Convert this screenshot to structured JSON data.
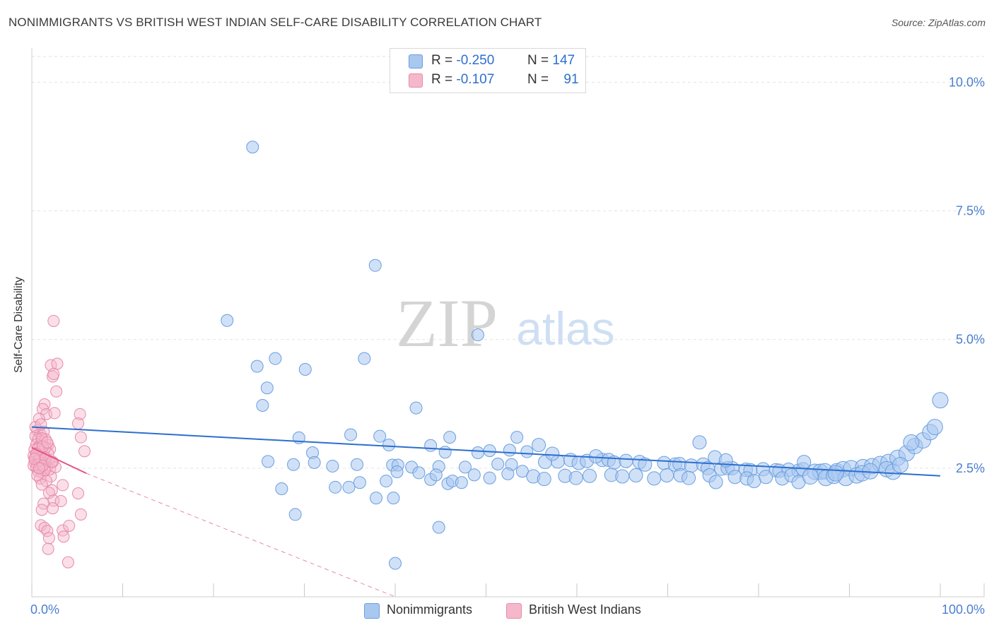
{
  "title": "NONIMMIGRANTS VS BRITISH WEST INDIAN SELF-CARE DISABILITY CORRELATION CHART",
  "source": "Source: ZipAtlas.com",
  "watermark": {
    "zip": "ZIP",
    "atlas": "atlas"
  },
  "legend_top": {
    "rows": [
      {
        "r_label": "R =",
        "r_value": "-0.250",
        "n_label": "N =",
        "n_value": "147"
      },
      {
        "r_label": "R =",
        "r_value": "-0.107",
        "n_label": "N =",
        "n_value": "91"
      }
    ]
  },
  "legend_bottom": {
    "items": [
      "Nonimmigrants",
      "British West Indians"
    ]
  },
  "colors": {
    "blue_fill": "#a9c8f0",
    "blue_stroke": "#6a9ee0",
    "blue_line": "#2d6fcf",
    "pink_fill": "#f5b8cb",
    "pink_stroke": "#e889a8",
    "pink_line": "#e25586",
    "tick_label": "#4a7fcf",
    "grid": "#e2e2e2"
  },
  "chart_data": {
    "type": "scatter",
    "title": "NONIMMIGRANTS VS BRITISH WEST INDIAN SELF-CARE DISABILITY CORRELATION CHART",
    "xlabel": "",
    "ylabel": "Self-Care Disability",
    "xlim": [
      0,
      100
    ],
    "ylim": [
      0,
      10.5
    ],
    "x_tick_labels": [
      "0.0%",
      "100.0%"
    ],
    "y_ticks": [
      2.5,
      5.0,
      7.5,
      10.0
    ],
    "y_tick_labels": [
      "2.5%",
      "5.0%",
      "7.5%",
      "10.0%"
    ],
    "grid": "horizontal dashed",
    "legend_placement": "top-center and bottom-center",
    "series": [
      {
        "name": "Nonimmigrants",
        "color": "#a9c8f0",
        "r": -0.25,
        "n": 147,
        "trend": {
          "x": [
            0,
            100
          ],
          "y": [
            3.3,
            2.35
          ]
        },
        "points": [
          [
            24.3,
            8.74
          ],
          [
            37.8,
            6.44
          ],
          [
            21.5,
            5.37
          ],
          [
            49.1,
            5.09
          ],
          [
            26.8,
            4.63
          ],
          [
            36.6,
            4.63
          ],
          [
            24.8,
            4.48
          ],
          [
            30.1,
            4.42
          ],
          [
            25.9,
            4.06
          ],
          [
            25.4,
            3.72
          ],
          [
            42.3,
            3.67
          ],
          [
            38.3,
            3.12
          ],
          [
            35.1,
            3.15
          ],
          [
            46.0,
            3.1
          ],
          [
            29.4,
            3.09
          ],
          [
            53.4,
            3.1
          ],
          [
            39.3,
            2.95
          ],
          [
            43.9,
            2.94
          ],
          [
            30.9,
            2.8
          ],
          [
            31.1,
            2.61
          ],
          [
            45.5,
            2.81
          ],
          [
            49.1,
            2.8
          ],
          [
            50.4,
            2.84
          ],
          [
            52.6,
            2.85
          ],
          [
            54.5,
            2.82
          ],
          [
            55.8,
            2.95
          ],
          [
            26.0,
            2.63
          ],
          [
            28.8,
            2.57
          ],
          [
            33.1,
            2.54
          ],
          [
            35.8,
            2.57
          ],
          [
            39.7,
            2.56
          ],
          [
            40.3,
            2.56
          ],
          [
            41.8,
            2.52
          ],
          [
            44.8,
            2.53
          ],
          [
            47.7,
            2.52
          ],
          [
            51.3,
            2.58
          ],
          [
            52.8,
            2.57
          ],
          [
            56.5,
            2.62
          ],
          [
            57.9,
            2.63
          ],
          [
            59.3,
            2.66
          ],
          [
            60.2,
            2.6
          ],
          [
            61.1,
            2.64
          ],
          [
            62.8,
            2.66
          ],
          [
            63.5,
            2.66
          ],
          [
            64.1,
            2.61
          ],
          [
            65.4,
            2.64
          ],
          [
            66.9,
            2.62
          ],
          [
            67.5,
            2.57
          ],
          [
            69.6,
            2.6
          ],
          [
            70.8,
            2.57
          ],
          [
            71.3,
            2.58
          ],
          [
            72.6,
            2.55
          ],
          [
            73.9,
            2.57
          ],
          [
            74.4,
            2.5
          ],
          [
            75.9,
            2.49
          ],
          [
            76.6,
            2.5
          ],
          [
            77.1,
            2.5
          ],
          [
            78.6,
            2.47
          ],
          [
            79.1,
            2.46
          ],
          [
            80.5,
            2.48
          ],
          [
            81.9,
            2.46
          ],
          [
            82.3,
            2.45
          ],
          [
            83.3,
            2.47
          ],
          [
            84.4,
            2.45
          ],
          [
            84.9,
            2.48
          ],
          [
            86.2,
            2.43
          ],
          [
            86.8,
            2.43
          ],
          [
            87.3,
            2.44
          ],
          [
            88.6,
            2.44
          ],
          [
            89.3,
            2.48
          ],
          [
            90.2,
            2.5
          ],
          [
            91.5,
            2.52
          ],
          [
            92.5,
            2.54
          ],
          [
            93.4,
            2.58
          ],
          [
            94.3,
            2.62
          ],
          [
            95.3,
            2.7
          ],
          [
            96.3,
            2.79
          ],
          [
            97.2,
            2.93
          ],
          [
            98.1,
            3.04
          ],
          [
            98.9,
            3.2
          ],
          [
            99.4,
            3.3
          ],
          [
            100.0,
            3.82
          ],
          [
            73.5,
            3.0
          ],
          [
            96.8,
            3.0
          ],
          [
            57.3,
            2.78
          ],
          [
            62.1,
            2.73
          ],
          [
            75.2,
            2.71
          ],
          [
            85.0,
            2.62
          ],
          [
            76.4,
            2.65
          ],
          [
            27.5,
            2.1
          ],
          [
            33.4,
            2.13
          ],
          [
            34.9,
            2.13
          ],
          [
            36.1,
            2.22
          ],
          [
            39.0,
            2.25
          ],
          [
            40.2,
            2.43
          ],
          [
            42.6,
            2.41
          ],
          [
            43.9,
            2.28
          ],
          [
            44.5,
            2.37
          ],
          [
            45.8,
            2.2
          ],
          [
            46.3,
            2.25
          ],
          [
            47.3,
            2.22
          ],
          [
            48.7,
            2.37
          ],
          [
            50.4,
            2.31
          ],
          [
            52.4,
            2.39
          ],
          [
            54.0,
            2.44
          ],
          [
            55.2,
            2.34
          ],
          [
            56.4,
            2.29
          ],
          [
            58.7,
            2.35
          ],
          [
            59.9,
            2.31
          ],
          [
            61.4,
            2.35
          ],
          [
            63.8,
            2.37
          ],
          [
            65.0,
            2.34
          ],
          [
            66.5,
            2.36
          ],
          [
            68.5,
            2.3
          ],
          [
            69.9,
            2.36
          ],
          [
            71.4,
            2.36
          ],
          [
            72.3,
            2.31
          ],
          [
            74.6,
            2.36
          ],
          [
            75.3,
            2.23
          ],
          [
            77.4,
            2.33
          ],
          [
            78.7,
            2.3
          ],
          [
            79.5,
            2.25
          ],
          [
            80.8,
            2.33
          ],
          [
            82.6,
            2.3
          ],
          [
            83.6,
            2.36
          ],
          [
            84.4,
            2.23
          ],
          [
            85.7,
            2.34
          ],
          [
            87.4,
            2.31
          ],
          [
            88.3,
            2.35
          ],
          [
            89.6,
            2.31
          ],
          [
            90.8,
            2.36
          ],
          [
            91.4,
            2.4
          ],
          [
            92.3,
            2.44
          ],
          [
            94.1,
            2.48
          ],
          [
            94.8,
            2.43
          ],
          [
            29.0,
            1.6
          ],
          [
            37.9,
            1.92
          ],
          [
            39.8,
            1.92
          ],
          [
            44.8,
            1.35
          ],
          [
            40.0,
            0.65
          ],
          [
            95.6,
            2.56
          ],
          [
            88.5,
            2.4
          ]
        ]
      },
      {
        "name": "British West Indians",
        "color": "#f5b8cb",
        "r": -0.107,
        "n": 91,
        "trend_solid": {
          "x": [
            0,
            6
          ],
          "y": [
            2.9,
            2.4
          ]
        },
        "trend_dashed": {
          "x": [
            6,
            40
          ],
          "y": [
            2.4,
            0.0
          ]
        },
        "points": [
          [
            2.4,
            5.36
          ],
          [
            2.1,
            4.5
          ],
          [
            2.8,
            4.53
          ],
          [
            2.3,
            4.28
          ],
          [
            2.4,
            4.33
          ],
          [
            2.7,
            3.99
          ],
          [
            1.4,
            3.74
          ],
          [
            1.2,
            3.65
          ],
          [
            1.6,
            3.55
          ],
          [
            2.5,
            3.57
          ],
          [
            0.8,
            3.46
          ],
          [
            5.3,
            3.55
          ],
          [
            5.1,
            3.37
          ],
          [
            0.6,
            3.23
          ],
          [
            0.9,
            3.17
          ],
          [
            1.3,
            3.21
          ],
          [
            5.4,
            3.1
          ],
          [
            0.4,
            3.12
          ],
          [
            0.7,
            3.06
          ],
          [
            1.1,
            3.02
          ],
          [
            1.5,
            3.06
          ],
          [
            0.5,
            2.96
          ],
          [
            0.9,
            2.93
          ],
          [
            1.8,
            2.95
          ],
          [
            5.8,
            2.83
          ],
          [
            0.3,
            2.86
          ],
          [
            0.6,
            2.8
          ],
          [
            1.0,
            2.83
          ],
          [
            1.3,
            2.77
          ],
          [
            2.0,
            2.87
          ],
          [
            0.2,
            2.74
          ],
          [
            0.4,
            2.71
          ],
          [
            0.8,
            2.68
          ],
          [
            1.2,
            2.72
          ],
          [
            1.6,
            2.68
          ],
          [
            0.3,
            2.62
          ],
          [
            0.6,
            2.59
          ],
          [
            0.9,
            2.63
          ],
          [
            1.4,
            2.6
          ],
          [
            2.3,
            2.62
          ],
          [
            0.2,
            2.55
          ],
          [
            0.5,
            2.52
          ],
          [
            1.0,
            2.49
          ],
          [
            1.7,
            2.52
          ],
          [
            0.7,
            2.44
          ],
          [
            1.2,
            2.41
          ],
          [
            2.1,
            2.34
          ],
          [
            0.9,
            2.3
          ],
          [
            1.6,
            2.25
          ],
          [
            3.4,
            2.17
          ],
          [
            1.1,
            2.18
          ],
          [
            2.2,
            2.07
          ],
          [
            1.9,
            2.02
          ],
          [
            5.1,
            2.01
          ],
          [
            2.4,
            1.87
          ],
          [
            3.2,
            1.86
          ],
          [
            1.3,
            1.81
          ],
          [
            1.1,
            1.69
          ],
          [
            2.3,
            1.72
          ],
          [
            5.4,
            1.6
          ],
          [
            1.0,
            1.39
          ],
          [
            1.4,
            1.34
          ],
          [
            3.4,
            1.29
          ],
          [
            1.7,
            1.28
          ],
          [
            4.1,
            1.38
          ],
          [
            3.5,
            1.17
          ],
          [
            1.9,
            1.14
          ],
          [
            1.8,
            0.93
          ],
          [
            4.0,
            0.67
          ],
          [
            0.8,
            2.65
          ],
          [
            1.5,
            2.9
          ],
          [
            1.8,
            2.78
          ],
          [
            0.4,
            3.3
          ],
          [
            1.1,
            3.08
          ],
          [
            2.0,
            2.48
          ],
          [
            1.3,
            2.58
          ],
          [
            0.7,
            2.88
          ],
          [
            1.4,
            2.46
          ],
          [
            0.9,
            2.7
          ],
          [
            1.2,
            2.92
          ],
          [
            0.5,
            2.78
          ],
          [
            1.0,
            3.35
          ],
          [
            1.9,
            2.64
          ],
          [
            2.6,
            2.52
          ],
          [
            0.6,
            2.36
          ],
          [
            1.5,
            2.7
          ],
          [
            1.2,
            2.55
          ],
          [
            0.3,
            2.68
          ],
          [
            1.7,
            3.0
          ],
          [
            0.8,
            2.5
          ],
          [
            2.2,
            2.62
          ]
        ]
      }
    ]
  }
}
